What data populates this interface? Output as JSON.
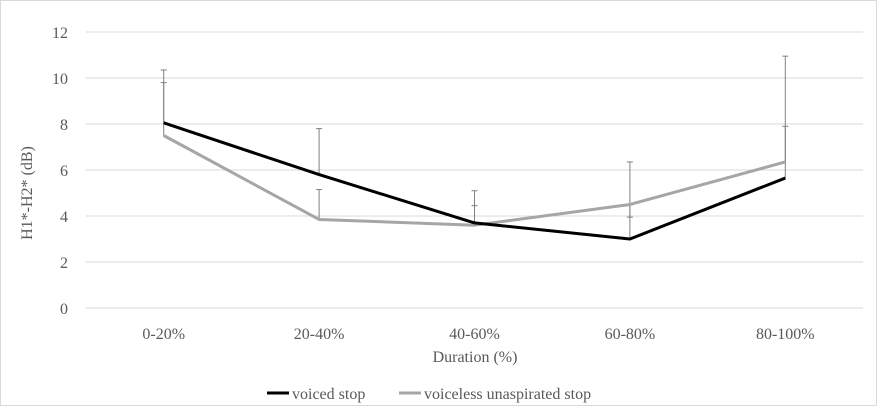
{
  "chart_data": {
    "type": "line",
    "categories": [
      "0-20%",
      "20-40%",
      "40-60%",
      "60-80%",
      "80-100%"
    ],
    "series": [
      {
        "name": "voiced stop",
        "values": [
          8.05,
          5.8,
          3.7,
          3.0,
          5.65
        ],
        "error_upper": [
          10.35,
          7.8,
          5.1,
          6.35,
          10.95
        ],
        "color": "#000000"
      },
      {
        "name": "voiceless unaspirated stop",
        "values": [
          7.5,
          3.85,
          3.6,
          4.5,
          6.35
        ],
        "error_upper": [
          9.8,
          5.15,
          4.45,
          3.95,
          7.9
        ],
        "color": "#a6a6a6"
      }
    ],
    "xlabel": "Duration (%)",
    "ylabel": "H1*-H2* (dB)",
    "ylim": [
      0,
      12
    ],
    "yticks": [
      "0",
      "2",
      "4",
      "6",
      "8",
      "10",
      "12"
    ],
    "grid": true,
    "legend_position": "bottom",
    "gridline_color": "#d9d9d9",
    "errorbar_color": "#808080"
  }
}
